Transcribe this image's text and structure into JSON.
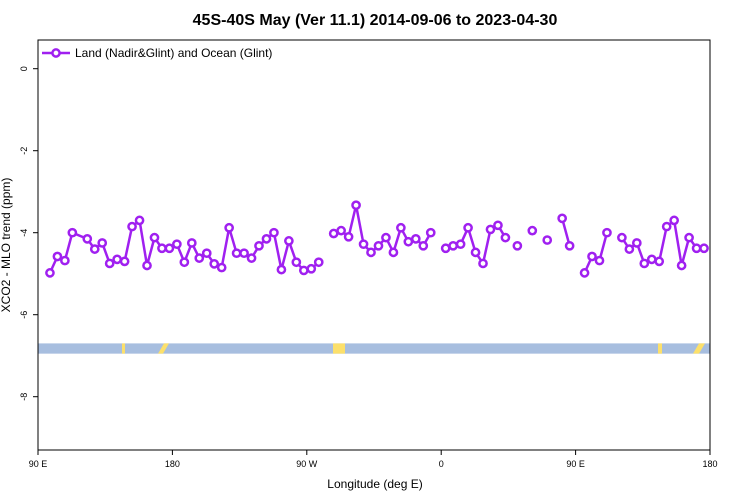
{
  "chart_data": {
    "type": "line",
    "title": "45S-40S May (Ver 11.1)   2014-09-06 to 2023-04-30",
    "xlabel": "Longitude (deg E)",
    "ylabel": "XCO2 - MLO trend (ppm)",
    "xlim": [
      90,
      540
    ],
    "ylim": [
      -9.3,
      0.7
    ],
    "x_ticks": [
      {
        "value": 90,
        "label": "90 E"
      },
      {
        "value": 180,
        "label": "180"
      },
      {
        "value": 270,
        "label": "90 W"
      },
      {
        "value": 360,
        "label": "0"
      },
      {
        "value": 450,
        "label": "90 E"
      },
      {
        "value": 540,
        "label": "180"
      }
    ],
    "y_ticks": [
      {
        "value": 0,
        "label": "0"
      },
      {
        "value": -2,
        "label": "-2"
      },
      {
        "value": -4,
        "label": "-4"
      },
      {
        "value": -6,
        "label": "-6"
      },
      {
        "value": -8,
        "label": "-8"
      }
    ],
    "grid": false,
    "legend_position": "top-left",
    "series": [
      {
        "name": "Land (Nadir&Glint) and Ocean (Glint)",
        "color": "#a020f0",
        "segments": [
          [
            [
              98,
              -4.98
            ],
            [
              103,
              -4.58
            ],
            [
              108,
              -4.68
            ],
            [
              113,
              -4.0
            ],
            [
              123,
              -4.15
            ],
            [
              128,
              -4.4
            ],
            [
              133,
              -4.25
            ],
            [
              138,
              -4.75
            ],
            [
              143,
              -4.65
            ],
            [
              148,
              -4.7
            ],
            [
              153,
              -3.85
            ],
            [
              158,
              -3.7
            ],
            [
              163,
              -4.8
            ],
            [
              168,
              -4.12
            ],
            [
              173,
              -4.38
            ],
            [
              178,
              -4.38
            ],
            [
              183,
              -4.28
            ],
            [
              188,
              -4.72
            ],
            [
              193,
              -4.25
            ],
            [
              198,
              -4.62
            ],
            [
              203,
              -4.5
            ],
            [
              208,
              -4.76
            ],
            [
              213,
              -4.85
            ],
            [
              218,
              -3.88
            ],
            [
              223,
              -4.5
            ],
            [
              228,
              -4.5
            ],
            [
              233,
              -4.62
            ],
            [
              238,
              -4.32
            ],
            [
              243,
              -4.15
            ],
            [
              248,
              -4.0
            ],
            [
              253,
              -4.9
            ],
            [
              258,
              -4.2
            ],
            [
              263,
              -4.72
            ],
            [
              268,
              -4.92
            ],
            [
              273,
              -4.88
            ],
            [
              278,
              -4.72
            ]
          ],
          [
            [
              288,
              -4.02
            ],
            [
              293,
              -3.95
            ],
            [
              298,
              -4.1
            ],
            [
              303,
              -3.33
            ],
            [
              308,
              -4.28
            ],
            [
              313,
              -4.48
            ],
            [
              318,
              -4.32
            ],
            [
              323,
              -4.12
            ],
            [
              328,
              -4.48
            ],
            [
              333,
              -3.88
            ],
            [
              338,
              -4.22
            ],
            [
              343,
              -4.15
            ],
            [
              348,
              -4.32
            ],
            [
              353,
              -4.0
            ]
          ],
          [
            [
              363,
              -4.38
            ],
            [
              368,
              -4.32
            ],
            [
              373,
              -4.28
            ],
            [
              378,
              -3.88
            ],
            [
              383,
              -4.48
            ],
            [
              388,
              -4.75
            ],
            [
              393,
              -3.92
            ],
            [
              398,
              -3.82
            ],
            [
              403,
              -4.12
            ]
          ],
          [
            [
              411,
              -4.32
            ]
          ],
          [
            [
              421,
              -3.95
            ]
          ],
          [
            [
              431,
              -4.18
            ]
          ],
          [
            [
              441,
              -3.65
            ],
            [
              446,
              -4.32
            ]
          ],
          [
            [
              456,
              -4.98
            ],
            [
              461,
              -4.58
            ],
            [
              466,
              -4.68
            ],
            [
              471,
              -4.0
            ]
          ],
          [
            [
              481,
              -4.12
            ],
            [
              486,
              -4.4
            ],
            [
              491,
              -4.25
            ],
            [
              496,
              -4.75
            ],
            [
              501,
              -4.65
            ],
            [
              506,
              -4.7
            ],
            [
              511,
              -3.85
            ],
            [
              516,
              -3.7
            ],
            [
              521,
              -4.8
            ],
            [
              526,
              -4.12
            ],
            [
              531,
              -4.38
            ],
            [
              536,
              -4.38
            ]
          ]
        ]
      }
    ],
    "land_strip": {
      "y_range": [
        -6.7,
        -6.95
      ],
      "ocean_color": "#a7bedf",
      "land_color": "#fce06b"
    }
  }
}
